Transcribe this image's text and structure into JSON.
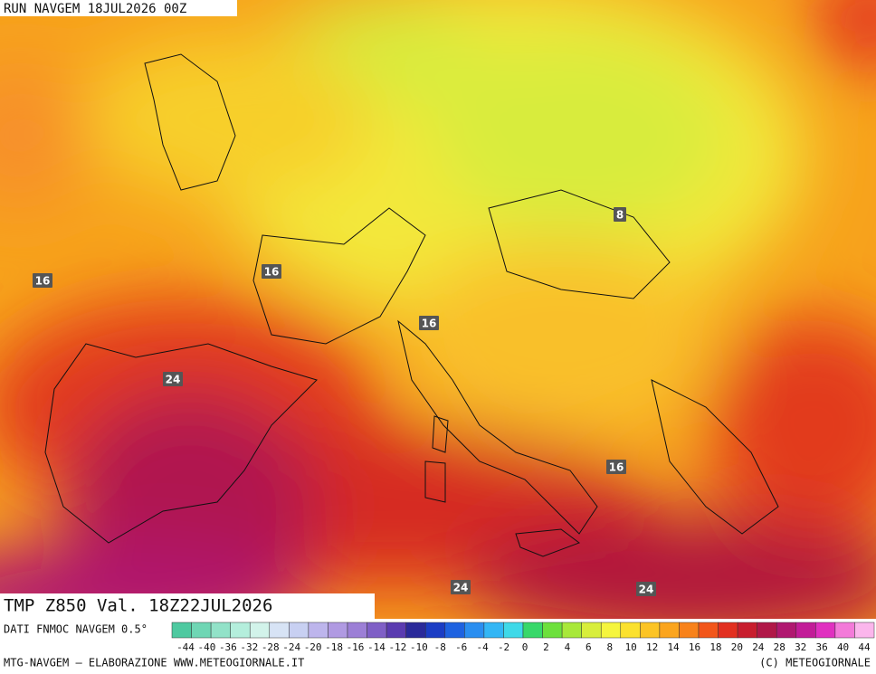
{
  "header": {
    "run": "RUN NAVGEM 18JUL2026 00Z"
  },
  "map": {
    "field": "TMP Z850 Val. 18Z22JUL2026",
    "contour_labels": [
      "16",
      "16",
      "16",
      "16",
      "24",
      "24",
      "24",
      "8"
    ]
  },
  "legend": {
    "source": "DATI FNMOC NAVGEM 0.5°",
    "labels": [
      "-44",
      "-40",
      "-36",
      "-32",
      "-28",
      "-24",
      "-20",
      "-18",
      "-16",
      "-14",
      "-12",
      "-10",
      "-8",
      "-6",
      "-4",
      "-2",
      "0",
      "2",
      "4",
      "6",
      "8",
      "10",
      "12",
      "14",
      "16",
      "18",
      "20",
      "24",
      "28",
      "32",
      "36",
      "40",
      "44"
    ],
    "colors": [
      "#4ec9a0",
      "#6fd6b4",
      "#92e2c8",
      "#b4eedc",
      "#d2f3ea",
      "#d7e3f5",
      "#c8d0f2",
      "#bdb5ec",
      "#b09ae2",
      "#9c7fd6",
      "#7f5fc6",
      "#5a3bb0",
      "#2a2a9a",
      "#1b3dc4",
      "#1e62e0",
      "#2a8ef0",
      "#33b6f5",
      "#3fd9e8",
      "#38d86a",
      "#6de03c",
      "#a8e83a",
      "#d8ee3c",
      "#f5f53e",
      "#fbe12e",
      "#fcc425",
      "#fba51e",
      "#f8821a",
      "#f2561a",
      "#e23020",
      "#c81e2e",
      "#b01848",
      "#b01870",
      "#c21c98",
      "#e030c0",
      "#f37ad9",
      "#fbb6ec"
    ]
  },
  "footer": {
    "left": "MTG-NAVGEM – ELABORAZIONE WWW.METEOGIORNALE.IT",
    "right": "(C) METEOGIORNALE"
  }
}
